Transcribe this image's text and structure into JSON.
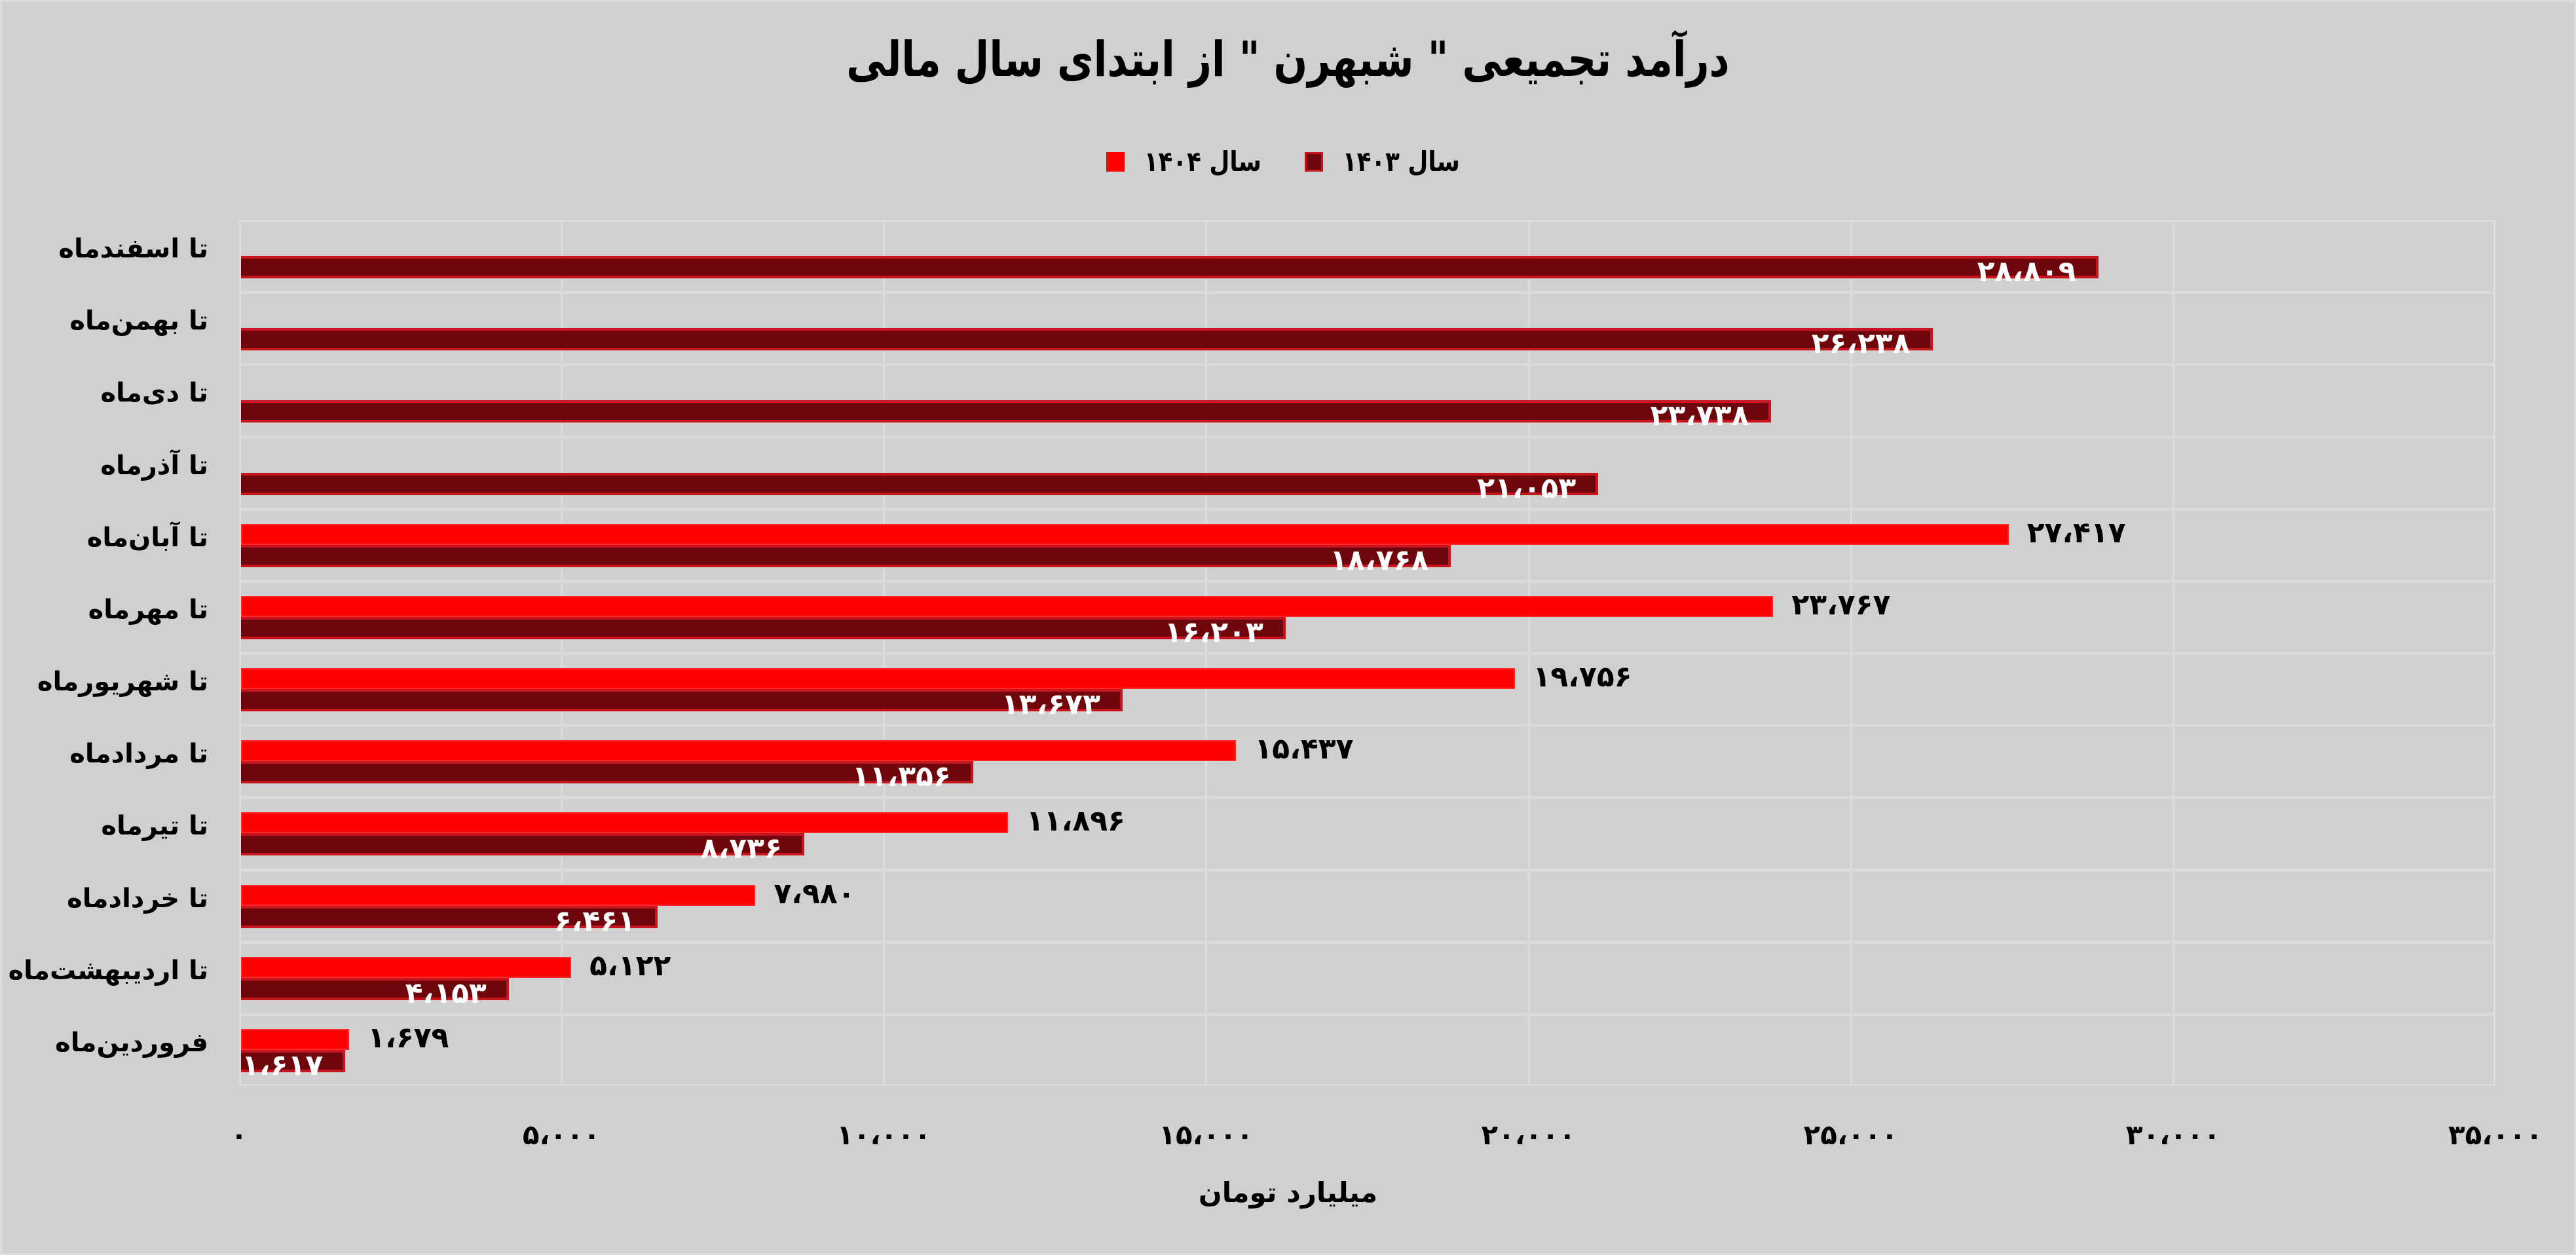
{
  "title": "درآمد تجمیعی \" شبهرن \" از ابتدای سال مالی",
  "legend": [
    {
      "label": "سال ۱۴۰۳",
      "color": "#6e060b",
      "border": "#c8141f"
    },
    {
      "label": "سال ۱۴۰۴",
      "color": "#ff0000",
      "border": "#ff2a2a"
    }
  ],
  "x_axis": {
    "title": "میلیارد تومان",
    "ticks": [
      "۰",
      "۵،۰۰۰",
      "۱۰،۰۰۰",
      "۱۵،۰۰۰",
      "۲۰،۰۰۰",
      "۲۵،۰۰۰",
      "۳۰،۰۰۰",
      "۳۵،۰۰۰"
    ]
  },
  "categories": [
    {
      "label": "تا اسفندماه",
      "v1404": null,
      "v1403": 28809,
      "l1404": "",
      "l1403": "۲۸،۸۰۹"
    },
    {
      "label": "تا بهمن‌ماه",
      "v1404": null,
      "v1403": 26238,
      "l1404": "",
      "l1403": "۲۶،۲۳۸"
    },
    {
      "label": "تا دی‌ماه",
      "v1404": null,
      "v1403": 23738,
      "l1404": "",
      "l1403": "۲۳،۷۳۸"
    },
    {
      "label": "تا آذرماه",
      "v1404": null,
      "v1403": 21053,
      "l1404": "",
      "l1403": "۲۱،۰۵۳"
    },
    {
      "label": "تا آبان‌ماه",
      "v1404": 27417,
      "v1403": 18768,
      "l1404": "۲۷،۴۱۷",
      "l1403": "۱۸،۷۶۸"
    },
    {
      "label": "تا مهرماه",
      "v1404": 23767,
      "v1403": 16203,
      "l1404": "۲۳،۷۶۷",
      "l1403": "۱۶،۲۰۳"
    },
    {
      "label": "تا شهریورماه",
      "v1404": 19756,
      "v1403": 13673,
      "l1404": "۱۹،۷۵۶",
      "l1403": "۱۳،۶۷۳"
    },
    {
      "label": "تا مردادماه",
      "v1404": 15437,
      "v1403": 11356,
      "l1404": "۱۵،۴۳۷",
      "l1403": "۱۱،۳۵۶"
    },
    {
      "label": "تا تیرماه",
      "v1404": 11896,
      "v1403": 8736,
      "l1404": "۱۱،۸۹۶",
      "l1403": "۸،۷۳۶"
    },
    {
      "label": "تا خردادماه",
      "v1404": 7980,
      "v1403": 6461,
      "l1404": "۷،۹۸۰",
      "l1403": "۶،۴۶۱"
    },
    {
      "label": "تا اردیبهشت‌ماه",
      "v1404": 5122,
      "v1403": 4153,
      "l1404": "۵،۱۲۲",
      "l1403": "۴،۱۵۳"
    },
    {
      "label": "فروردین‌ماه",
      "v1404": 1679,
      "v1403": 1617,
      "l1404": "۱،۶۷۹",
      "l1403": "۱،۶۱۷"
    }
  ],
  "chart_data": {
    "type": "bar",
    "orientation": "horizontal",
    "title": "درآمد تجمیعی \" شبهرن \" از ابتدای سال مالی",
    "xlabel": "میلیارد تومان",
    "ylabel": "",
    "xlim": [
      0,
      35000
    ],
    "x_ticks": [
      0,
      5000,
      10000,
      15000,
      20000,
      25000,
      30000,
      35000
    ],
    "grid": true,
    "legend_position": "top",
    "categories": [
      "تا اسفندماه",
      "تا بهمن‌ماه",
      "تا دی‌ماه",
      "تا آذرماه",
      "تا آبان‌ماه",
      "تا مهرماه",
      "تا شهریورماه",
      "تا مردادماه",
      "تا تیرماه",
      "تا خردادماه",
      "تا اردیبهشت‌ماه",
      "فروردین‌ماه"
    ],
    "series": [
      {
        "name": "سال ۱۴۰۴",
        "color": "#ff0000",
        "values": [
          null,
          null,
          null,
          null,
          27417,
          23767,
          19756,
          15437,
          11896,
          7980,
          5122,
          1679
        ]
      },
      {
        "name": "سال ۱۴۰۳",
        "color": "#6e060b",
        "values": [
          28809,
          26238,
          23738,
          21053,
          18768,
          16203,
          13673,
          11356,
          8736,
          6461,
          4153,
          1617
        ]
      }
    ]
  }
}
